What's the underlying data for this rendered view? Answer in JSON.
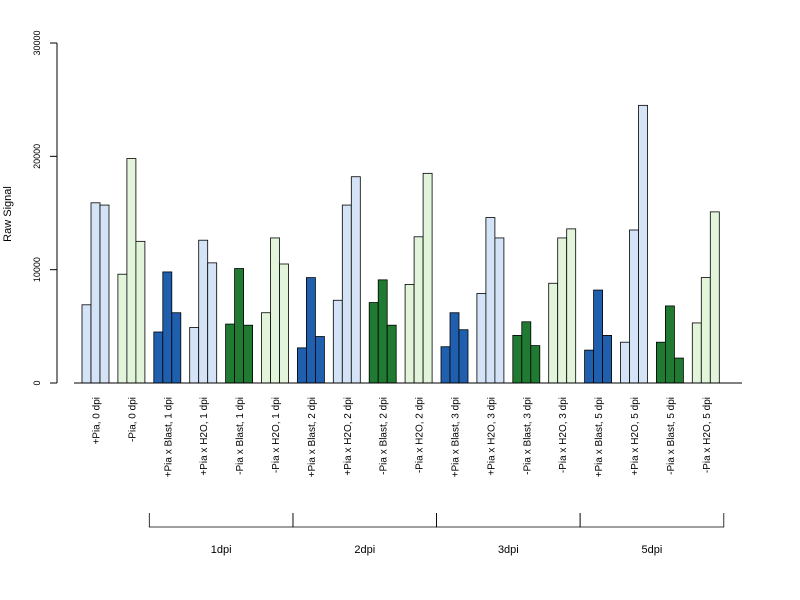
{
  "chart_data": {
    "type": "bar",
    "ylabel": "Raw Signal",
    "ylim": [
      0,
      30000
    ],
    "yticks": [
      0,
      10000,
      20000,
      30000
    ],
    "colors": {
      "light_blue": "#d4e3f5",
      "light_green": "#e2f5db",
      "dark_blue": "#1f5fae",
      "dark_green": "#207a32"
    },
    "categories": [
      "+Pia, 0 dpi",
      "-Pia, 0 dpi",
      "+Pia x Blast, 1 dpi",
      "+Pia x H2O, 1 dpi",
      "-Pia x Blast, 1 dpi",
      "-Pia x H2O, 1 dpi",
      "+Pia x Blast, 2 dpi",
      "+Pia x H2O, 2 dpi",
      "-Pia x Blast, 2 dpi",
      "-Pia x H2O, 2 dpi",
      "+Pia x Blast, 3 dpi",
      "+Pia x H2O, 3 dpi",
      "-Pia x Blast, 3 dpi",
      "-Pia x H2O, 3 dpi",
      "+Pia x Blast, 5 dpi",
      "+Pia x H2O, 5 dpi",
      "-Pia x Blast, 5 dpi",
      "-Pia x H2O, 5 dpi"
    ],
    "category_colors": [
      "light_blue",
      "light_green",
      "dark_blue",
      "light_blue",
      "dark_green",
      "light_green",
      "dark_blue",
      "light_blue",
      "dark_green",
      "light_green",
      "dark_blue",
      "light_blue",
      "dark_green",
      "light_green",
      "dark_blue",
      "light_blue",
      "dark_green",
      "light_green"
    ],
    "values": [
      [
        6900,
        15900,
        15700
      ],
      [
        9600,
        19800,
        12500
      ],
      [
        4500,
        9800,
        6200
      ],
      [
        4900,
        12600,
        10600
      ],
      [
        5200,
        10100,
        5100
      ],
      [
        6200,
        12800,
        10500
      ],
      [
        3100,
        9300,
        4100
      ],
      [
        7300,
        15700,
        18200
      ],
      [
        7100,
        9100,
        5100
      ],
      [
        8700,
        12900,
        18500
      ],
      [
        3200,
        6200,
        4700
      ],
      [
        7900,
        14600,
        12800
      ],
      [
        4200,
        5400,
        3300
      ],
      [
        8800,
        12800,
        13600
      ],
      [
        2900,
        8200,
        4200
      ],
      [
        3600,
        13500,
        24500
      ],
      [
        3600,
        6800,
        2200
      ],
      [
        5300,
        9300,
        15100
      ]
    ],
    "groups": [
      {
        "label": "1dpi",
        "start": 2,
        "end": 5
      },
      {
        "label": "2dpi",
        "start": 6,
        "end": 9
      },
      {
        "label": "3dpi",
        "start": 10,
        "end": 13
      },
      {
        "label": "5dpi",
        "start": 14,
        "end": 17
      }
    ]
  }
}
